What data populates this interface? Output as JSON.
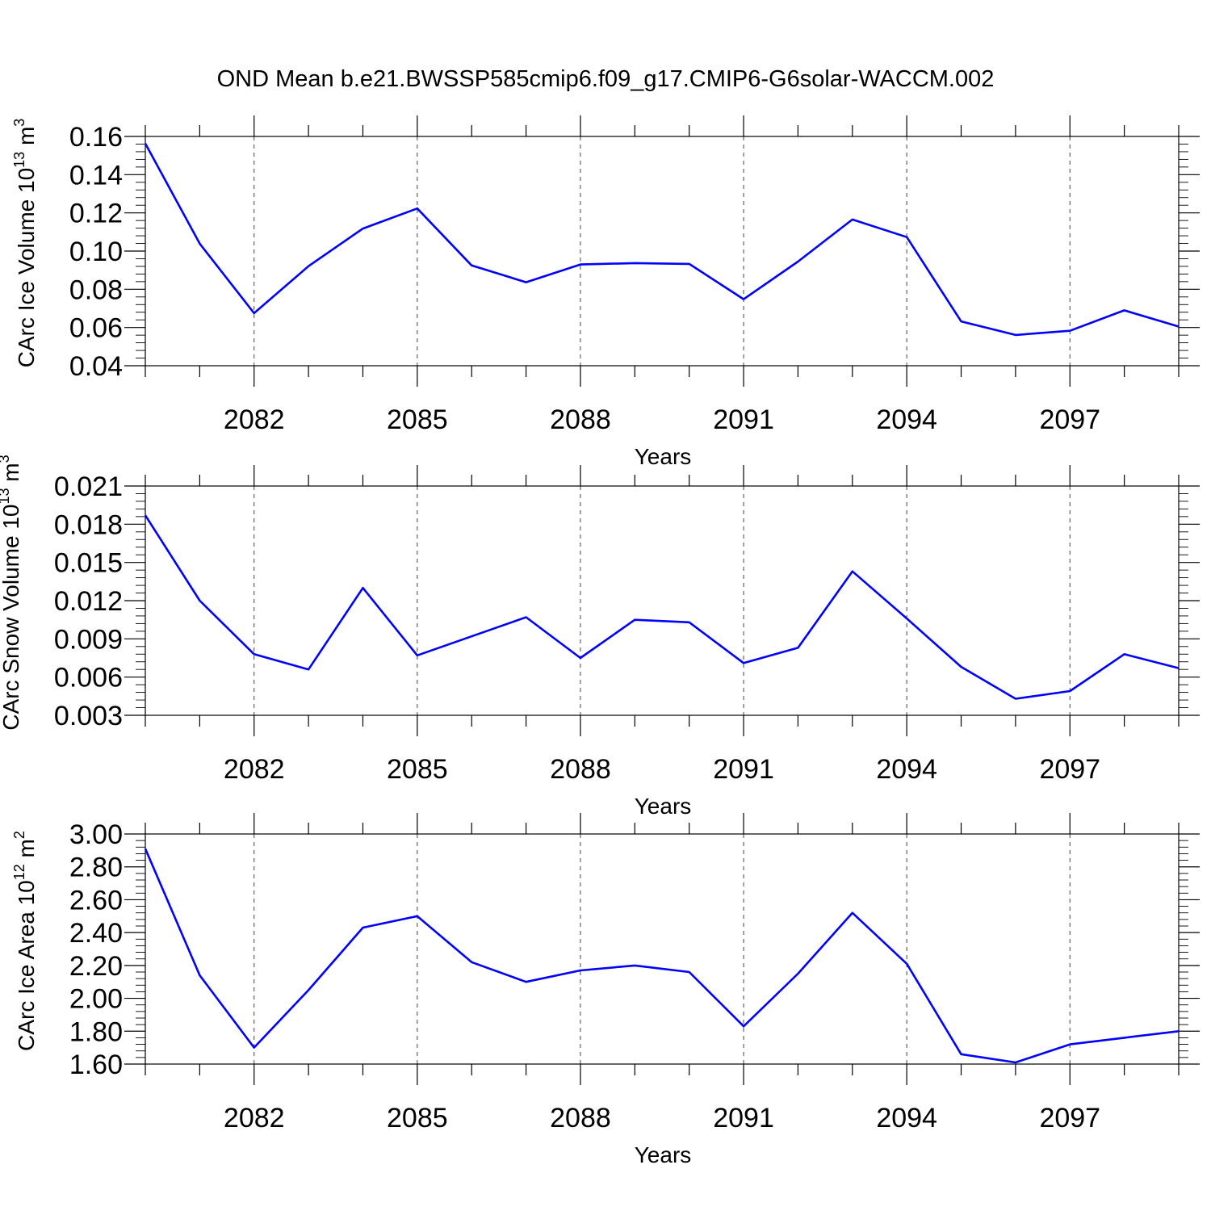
{
  "title": "OND Mean b.e21.BWSSP585cmip6.f09_g17.CMIP6-G6solar-WACCM.002",
  "colors": {
    "line": "#0000ff",
    "axis": "#000000"
  },
  "chart_data": [
    {
      "type": "line",
      "xlabel": "Years",
      "ylabel": "CArc Ice Volume 10",
      "ylabel_sup": "13",
      "ylabel_unit": " m",
      "ylabel_unit_sup": "3",
      "ylim": [
        0.04,
        0.16
      ],
      "yticks": [
        "0.04",
        "0.06",
        "0.08",
        "0.10",
        "0.12",
        "0.14",
        "0.16"
      ],
      "xlim": [
        2080,
        2099
      ],
      "xticks": [
        "2082",
        "2085",
        "2088",
        "2091",
        "2094",
        "2097"
      ],
      "grid": "dashed vertical lines at labeled years",
      "x": [
        2080,
        2081,
        2082,
        2083,
        2084,
        2085,
        2086,
        2087,
        2088,
        2089,
        2090,
        2091,
        2092,
        2093,
        2094,
        2095,
        2096,
        2097,
        2098,
        2099
      ],
      "values": [
        0.1563,
        0.1039,
        0.0675,
        0.0921,
        0.1118,
        0.1223,
        0.0925,
        0.0837,
        0.093,
        0.0937,
        0.0933,
        0.0748,
        0.0945,
        0.1165,
        0.1073,
        0.0632,
        0.0561,
        0.0583,
        0.069,
        0.0605
      ]
    },
    {
      "type": "line",
      "xlabel": "Years",
      "ylabel": "CArc Snow Volume 10",
      "ylabel_sup": "13",
      "ylabel_unit": " m",
      "ylabel_unit_sup": "3",
      "ylim": [
        0.003,
        0.021
      ],
      "yticks": [
        "0.003",
        "0.006",
        "0.009",
        "0.012",
        "0.015",
        "0.018",
        "0.021"
      ],
      "xlim": [
        2080,
        2099
      ],
      "xticks": [
        "2082",
        "2085",
        "2088",
        "2091",
        "2094",
        "2097"
      ],
      "grid": "dashed vertical lines at labeled years",
      "x": [
        2080,
        2081,
        2082,
        2083,
        2084,
        2085,
        2086,
        2087,
        2088,
        2089,
        2090,
        2091,
        2092,
        2093,
        2094,
        2095,
        2096,
        2097,
        2098,
        2099
      ],
      "values": [
        0.0187,
        0.012,
        0.0078,
        0.0066,
        0.013,
        0.0077,
        0.0092,
        0.0107,
        0.0075,
        0.0105,
        0.0103,
        0.0071,
        0.0083,
        0.0143,
        0.0106,
        0.0068,
        0.0043,
        0.0049,
        0.0078,
        0.0067
      ]
    },
    {
      "type": "line",
      "xlabel": "Years",
      "ylabel": "CArc Ice Area 10",
      "ylabel_sup": "12",
      "ylabel_unit": " m",
      "ylabel_unit_sup": "2",
      "ylim": [
        1.6,
        3.0
      ],
      "yticks": [
        "1.60",
        "1.80",
        "2.00",
        "2.20",
        "2.40",
        "2.60",
        "2.80",
        "3.00"
      ],
      "xlim": [
        2080,
        2099
      ],
      "xticks": [
        "2082",
        "2085",
        "2088",
        "2091",
        "2094",
        "2097"
      ],
      "grid": "dashed vertical lines at labeled years",
      "x": [
        2080,
        2081,
        2082,
        2083,
        2084,
        2085,
        2086,
        2087,
        2088,
        2089,
        2090,
        2091,
        2092,
        2093,
        2094,
        2095,
        2096,
        2097,
        2098,
        2099
      ],
      "values": [
        2.91,
        2.14,
        1.7,
        2.05,
        2.43,
        2.5,
        2.22,
        2.1,
        2.17,
        2.2,
        2.16,
        1.83,
        2.15,
        2.52,
        2.21,
        1.66,
        1.61,
        1.72,
        1.76,
        1.8
      ]
    }
  ]
}
